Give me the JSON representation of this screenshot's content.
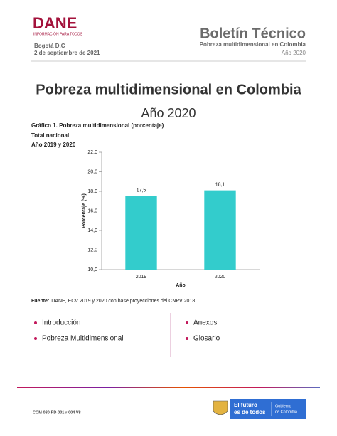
{
  "header": {
    "logo": "DANE",
    "logo_tagline": "INFORMACIÓN PARA TODOS",
    "location": "Bogotá D.C",
    "date": "2 de septiembre de 2021",
    "title": "Boletín Técnico",
    "subtitle": "Pobreza multidimensional en Colombia",
    "year": "Año 2020"
  },
  "document": {
    "title": "Pobreza multidimensional en Colombia",
    "subtitle": "Año 2020",
    "chart_caption": [
      "Gráfico 1. Pobreza multidimensional (porcentaje)",
      "Total nacional",
      "Año 2019 y 2020"
    ],
    "source_label": "Fuente:",
    "source": "DANE, ECV 2019 y 2020 con base proyecciones del CNPV 2018."
  },
  "chart_data": {
    "type": "bar",
    "categories": [
      "2019",
      "2020"
    ],
    "values": [
      17.5,
      18.1
    ],
    "value_labels": [
      "17,5",
      "18,1"
    ],
    "color": "#33cccc",
    "x_label": "Año",
    "y_label": "Porcentaje (%)",
    "ylim": [
      10,
      22
    ],
    "yticks": [
      {
        "value": 10,
        "label": "10,0"
      },
      {
        "value": 12,
        "label": "12,0"
      },
      {
        "value": 14,
        "label": "14,0"
      },
      {
        "value": 16,
        "label": "16,0"
      },
      {
        "value": 18,
        "label": "18,0"
      },
      {
        "value": 20,
        "label": "20,0"
      },
      {
        "value": 22,
        "label": "22,0"
      }
    ]
  },
  "menu": {
    "left": [
      "Introducción",
      "Pobreza Multidimensional"
    ],
    "right": [
      "Anexos",
      "Glosario"
    ]
  },
  "footer": {
    "code": "COM-030-PD-001-r-004 V8",
    "slogan": [
      "El futuro",
      "es de todos"
    ],
    "government": [
      "Gobierno",
      "de Colombia"
    ]
  }
}
